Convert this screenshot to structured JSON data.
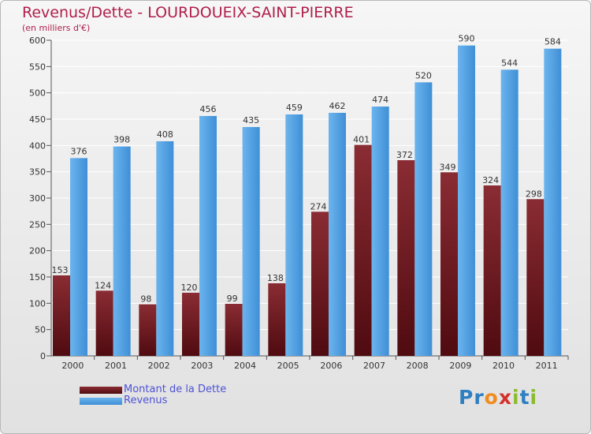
{
  "header": {
    "title": "Revenus/Dette - LOURDOUEIX-SAINT-PIERRE",
    "subtitle": "(en milliers d'€)"
  },
  "legend": {
    "dette_label": "Montant de la Dette",
    "revenus_label": "Revenus"
  },
  "logo": {
    "letters": [
      "P",
      "r",
      "o",
      "x",
      "i",
      "t",
      "i"
    ],
    "colors": [
      "#2e7fc2",
      "#2e7fc2",
      "#f08c1e",
      "#d4322c",
      "#8dbb2e",
      "#2e7fc2",
      "#8dbb2e"
    ]
  },
  "colors": {
    "dette": "#7a1f25",
    "revenus": "#4a9ee0",
    "title": "#b01e4c"
  },
  "chart_data": {
    "type": "bar",
    "title": "Revenus/Dette - LOURDOUEIX-SAINT-PIERRE",
    "subtitle": "(en milliers d'€)",
    "categories": [
      "2000",
      "2001",
      "2002",
      "2003",
      "2004",
      "2005",
      "2006",
      "2007",
      "2008",
      "2009",
      "2010",
      "2011"
    ],
    "series": [
      {
        "name": "Montant de la Dette",
        "values": [
          153,
          124,
          98,
          120,
          99,
          138,
          274,
          401,
          372,
          349,
          324,
          298
        ]
      },
      {
        "name": "Revenus",
        "values": [
          376,
          398,
          408,
          456,
          435,
          459,
          462,
          474,
          520,
          590,
          544,
          584
        ]
      }
    ],
    "ylim": [
      0,
      600
    ],
    "yticks": [
      0,
      50,
      100,
      150,
      200,
      250,
      300,
      350,
      400,
      450,
      500,
      550,
      600
    ],
    "grid": true,
    "legend_position": "bottom-left"
  }
}
